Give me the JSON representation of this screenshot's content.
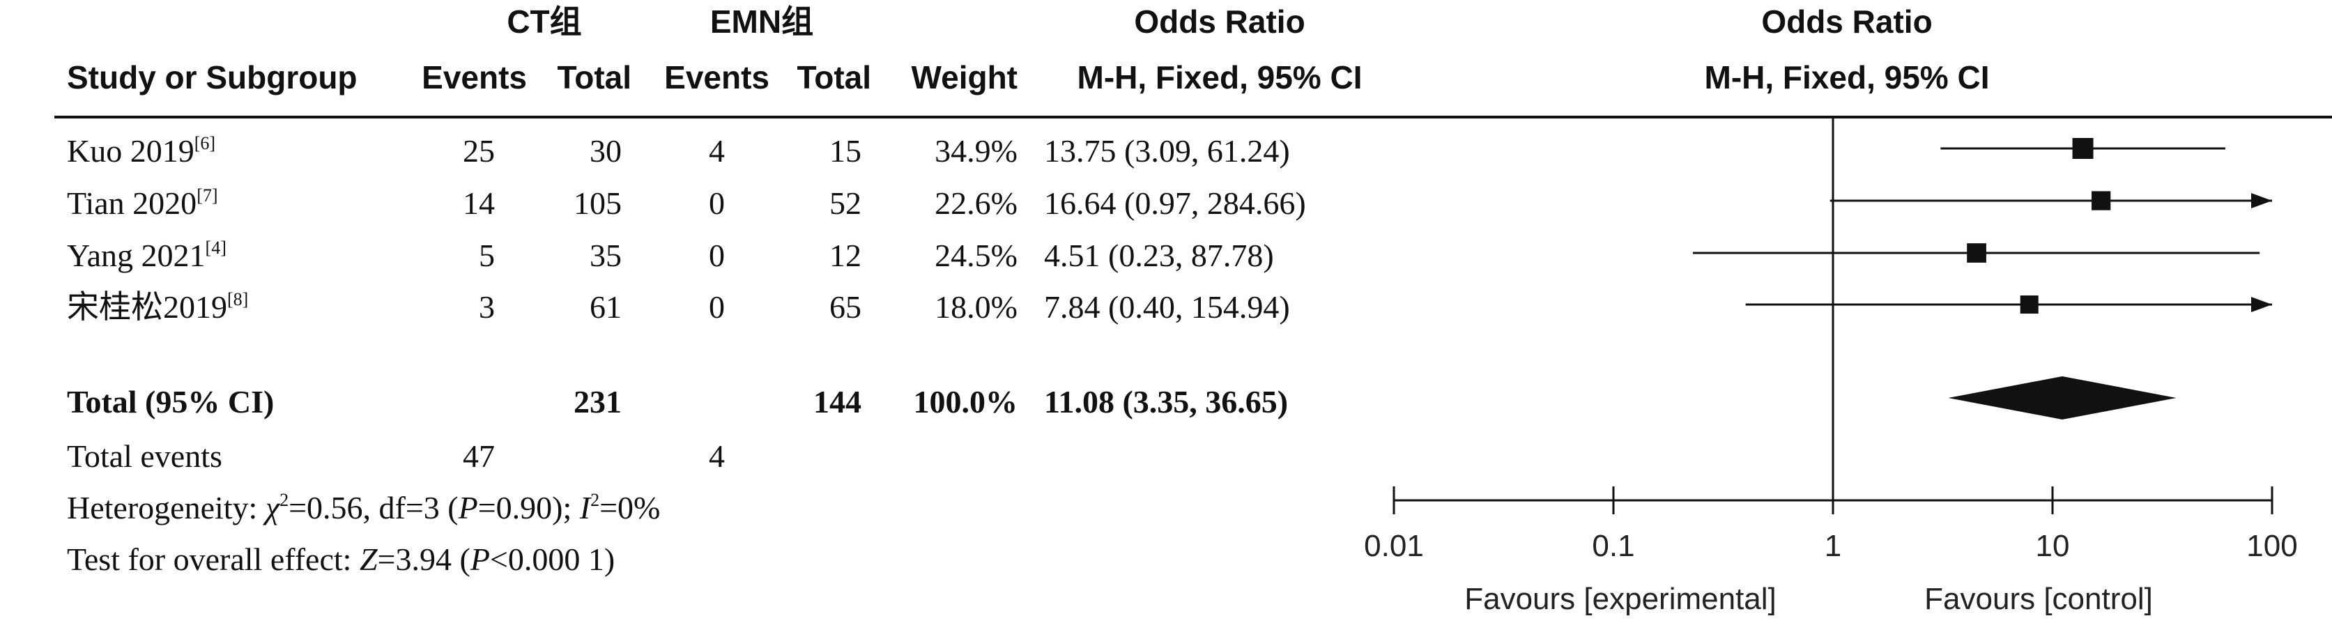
{
  "header": {
    "group1": "CT组",
    "group2": "EMN组",
    "or_table": "Odds Ratio",
    "or_plot": "Odds Ratio",
    "study_col": "Study or Subgroup",
    "events1": "Events",
    "total1": "Total",
    "events2": "Events",
    "total2": "Total",
    "weight": "Weight",
    "method_table": "M-H, Fixed, 95% CI",
    "method_plot": "M-H, Fixed, 95% CI"
  },
  "studies": [
    {
      "name": "Kuo 2019",
      "ref": "[6]",
      "events1": "25",
      "total1": "30",
      "events2": "4",
      "total2": "15",
      "weight_text": "34.9%",
      "ci_text": "13.75 (3.09, 61.24)"
    },
    {
      "name": "Tian 2020",
      "ref": "[7]",
      "events1": "14",
      "total1": "105",
      "events2": "0",
      "total2": "52",
      "weight_text": "22.6%",
      "ci_text": "16.64 (0.97, 284.66)"
    },
    {
      "name": "Yang 2021",
      "ref": "[4]",
      "events1": "5",
      "total1": "35",
      "events2": "0",
      "total2": "12",
      "weight_text": "24.5%",
      "ci_text": "4.51 (0.23, 87.78)"
    },
    {
      "name": "宋桂松2019",
      "ref": "[8]",
      "events1": "3",
      "total1": "61",
      "events2": "0",
      "total2": "65",
      "weight_text": "18.0%",
      "ci_text": "7.84 (0.40, 154.94)"
    }
  ],
  "total": {
    "label": "Total (95% CI)",
    "total1": "231",
    "total2": "144",
    "weight_text": "100.0%",
    "ci_text": "11.08 (3.35, 36.65)"
  },
  "total_events": {
    "label": "Total events",
    "events1": "47",
    "events2": "4"
  },
  "heterogeneity": {
    "prefix": "Heterogeneity: ",
    "chi": "χ",
    "chi_stats": "=0.56, df=3 (",
    "p_sym": "P",
    "p_val": "=0.90); ",
    "i_sym": "I",
    "i_val": "=0%"
  },
  "overall": {
    "prefix": "Test for overall effect: ",
    "z_sym": "Z",
    "z_val": "=3.94 (",
    "p_sym": "P",
    "p_val": "<0.000 1)"
  },
  "chart_data": {
    "type": "forest",
    "x_scale": "log",
    "xlim": [
      0.01,
      100
    ],
    "ticks": [
      0.01,
      0.1,
      1,
      10,
      100
    ],
    "tick_labels": [
      "0.01",
      "0.1",
      "1",
      "10",
      "100"
    ],
    "reference_line": 1,
    "favours_left": "Favours [experimental]",
    "favours_right": "Favours [control]",
    "studies": [
      {
        "or": 13.75,
        "lower": 3.09,
        "upper": 61.24,
        "weight": 34.9
      },
      {
        "or": 16.64,
        "lower": 0.97,
        "upper": 284.66,
        "weight": 22.6
      },
      {
        "or": 4.51,
        "lower": 0.23,
        "upper": 87.78,
        "weight": 24.5
      },
      {
        "or": 7.84,
        "lower": 0.4,
        "upper": 154.94,
        "weight": 18.0
      }
    ],
    "pooled": {
      "or": 11.08,
      "lower": 3.35,
      "upper": 36.65
    }
  }
}
